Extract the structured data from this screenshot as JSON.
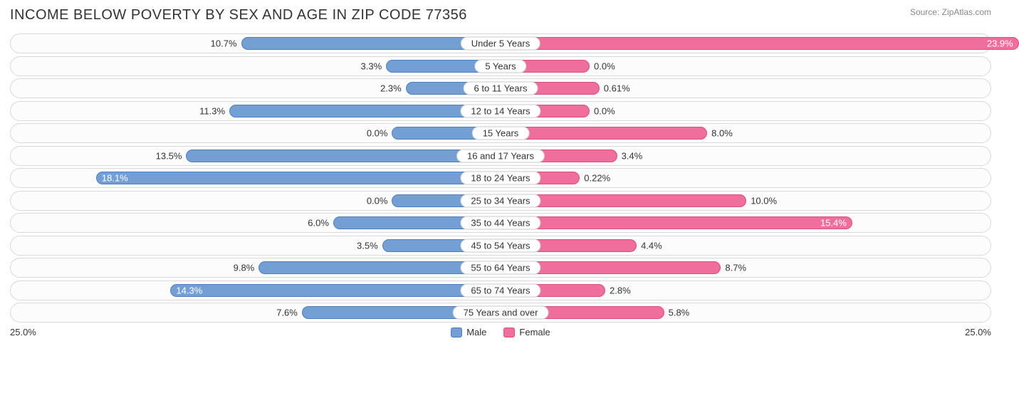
{
  "title": "INCOME BELOW POVERTY BY SEX AND AGE IN ZIP CODE 77356",
  "source": "Source: ZipAtlas.com",
  "axis_max": 25.0,
  "axis_left_label": "25.0%",
  "axis_right_label": "25.0%",
  "colors": {
    "male_fill": "#739fd4",
    "male_border": "#4f7fb8",
    "female_fill": "#ef6e9b",
    "female_border": "#d94e80",
    "row_border": "#d9d9d9",
    "pill_border": "#cccccc",
    "text": "#333333",
    "inside_text": "#ffffff",
    "background": "#ffffff"
  },
  "legend": {
    "male": "Male",
    "female": "Female"
  },
  "inside_threshold": 14.0,
  "rows": [
    {
      "category": "Under 5 Years",
      "male": 10.7,
      "male_label": "10.7%",
      "female": 23.9,
      "female_label": "23.9%"
    },
    {
      "category": "5 Years",
      "male": 3.3,
      "male_label": "3.3%",
      "female": 0.0,
      "female_label": "0.0%",
      "female_bar_min": 2.0
    },
    {
      "category": "6 to 11 Years",
      "male": 2.3,
      "male_label": "2.3%",
      "female": 0.61,
      "female_label": "0.61%",
      "female_bar_min": 2.5
    },
    {
      "category": "12 to 14 Years",
      "male": 11.3,
      "male_label": "11.3%",
      "female": 0.0,
      "female_label": "0.0%",
      "female_bar_min": 2.0
    },
    {
      "category": "15 Years",
      "male": 0.0,
      "male_label": "0.0%",
      "female": 8.0,
      "female_label": "8.0%",
      "male_bar_min": 3.0
    },
    {
      "category": "16 and 17 Years",
      "male": 13.5,
      "male_label": "13.5%",
      "female": 3.4,
      "female_label": "3.4%"
    },
    {
      "category": "18 to 24 Years",
      "male": 18.1,
      "male_label": "18.1%",
      "female": 0.22,
      "female_label": "0.22%",
      "female_bar_min": 1.5
    },
    {
      "category": "25 to 34 Years",
      "male": 0.0,
      "male_label": "0.0%",
      "female": 10.0,
      "female_label": "10.0%",
      "male_bar_min": 3.0
    },
    {
      "category": "35 to 44 Years",
      "male": 6.0,
      "male_label": "6.0%",
      "female": 15.4,
      "female_label": "15.4%"
    },
    {
      "category": "45 to 54 Years",
      "male": 3.5,
      "male_label": "3.5%",
      "female": 4.4,
      "female_label": "4.4%"
    },
    {
      "category": "55 to 64 Years",
      "male": 9.8,
      "male_label": "9.8%",
      "female": 8.7,
      "female_label": "8.7%"
    },
    {
      "category": "65 to 74 Years",
      "male": 14.3,
      "male_label": "14.3%",
      "female": 2.8,
      "female_label": "2.8%"
    },
    {
      "category": "75 Years and over",
      "male": 7.6,
      "male_label": "7.6%",
      "female": 5.8,
      "female_label": "5.8%"
    }
  ]
}
